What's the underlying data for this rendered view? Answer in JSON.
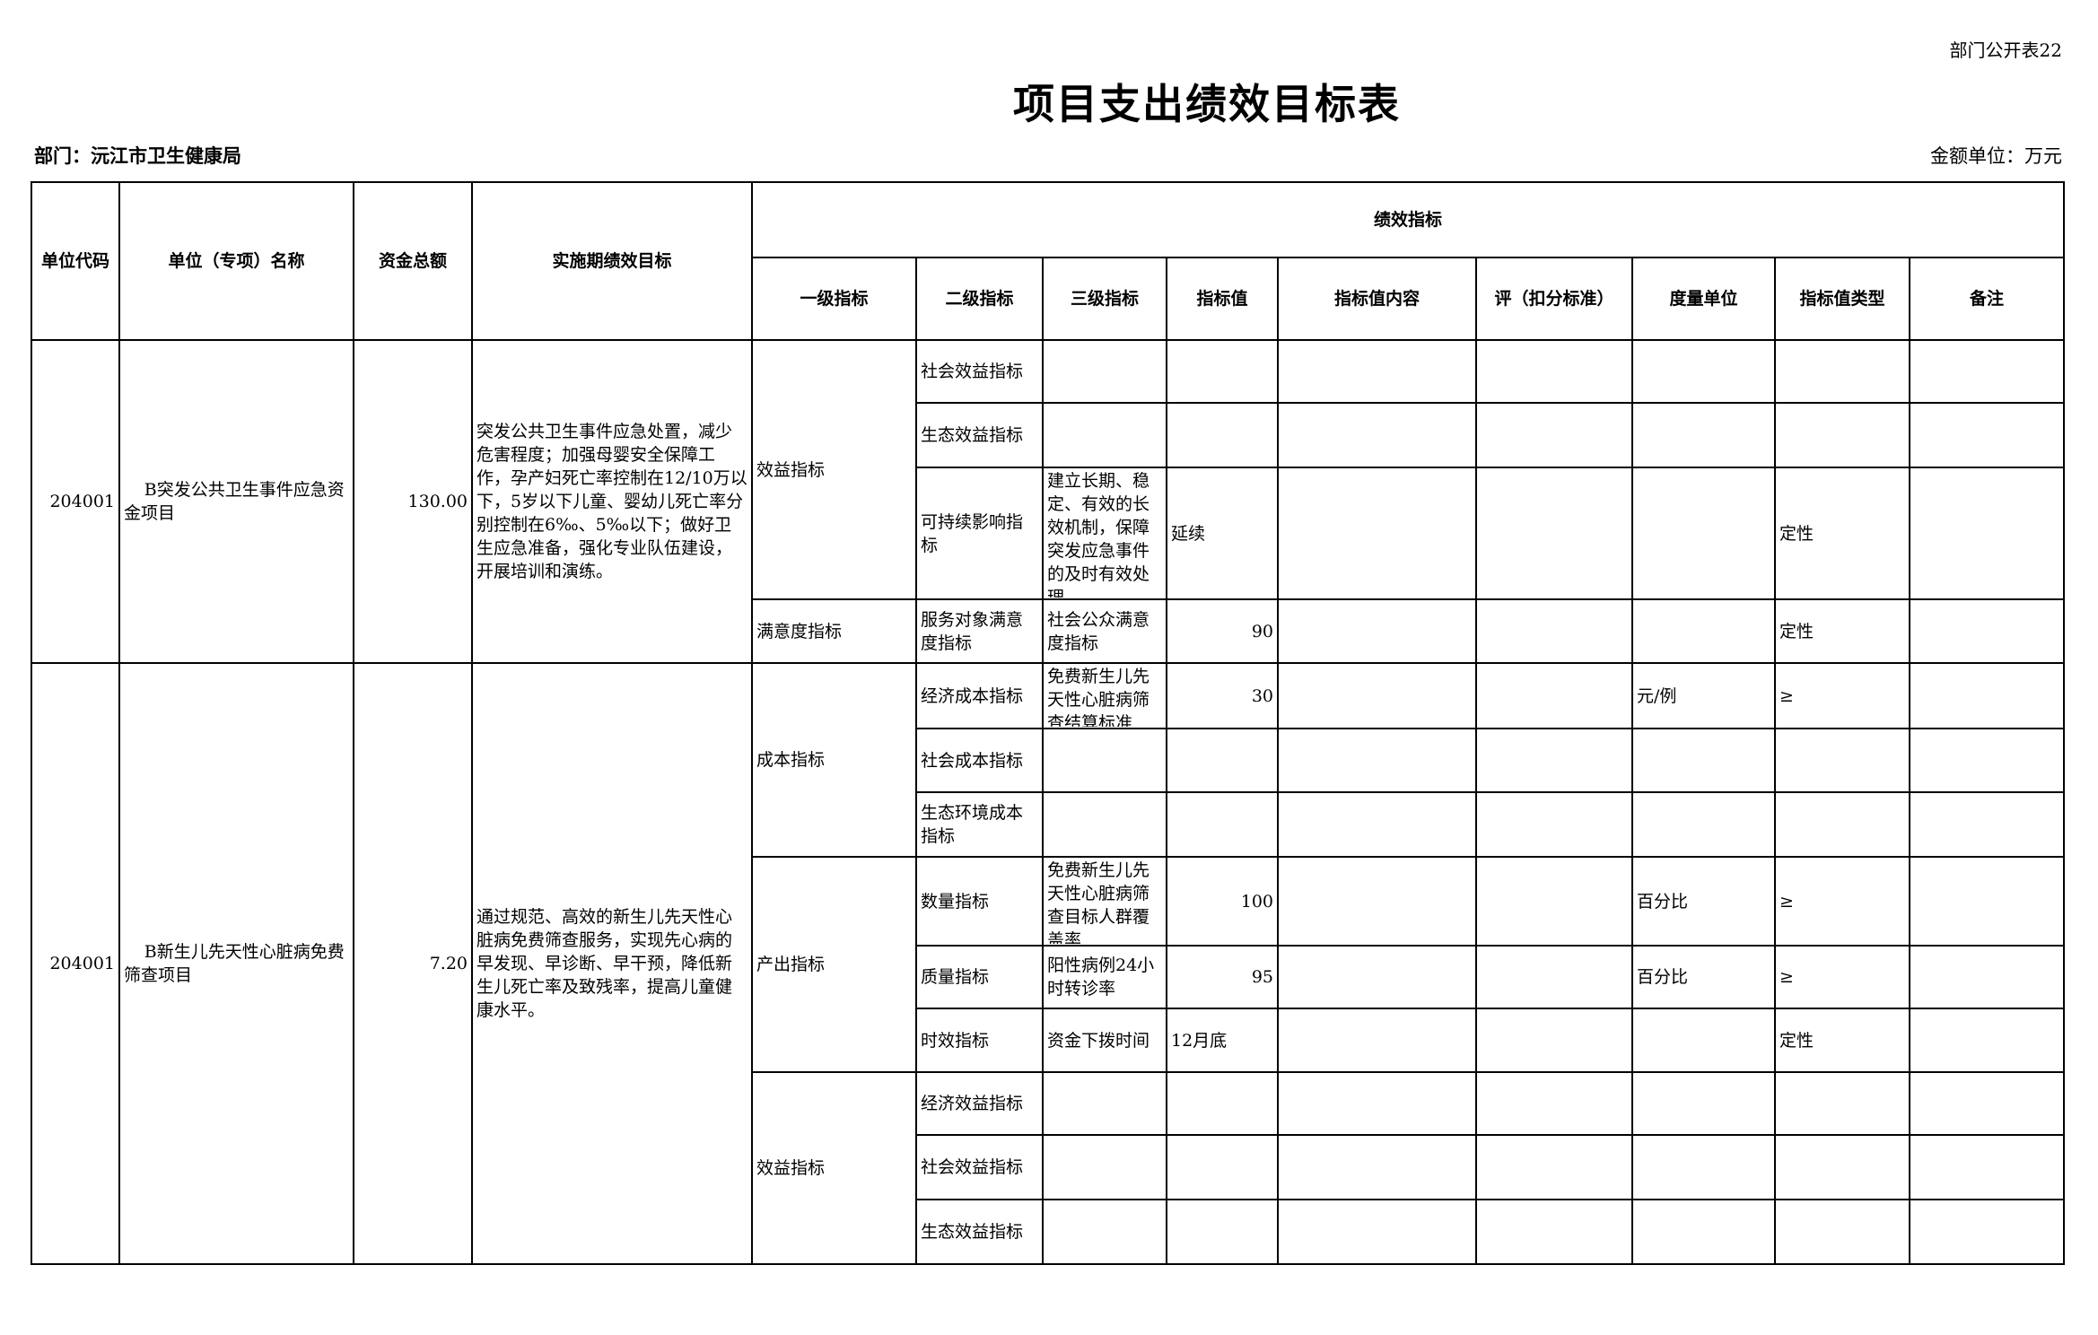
{
  "form_no": "部门公开表22",
  "title": "项目支出绩效目标表",
  "department": "部门：沅江市卫生健康局",
  "amount_unit": "金额单位：万元",
  "headers": {
    "code": "单位代码",
    "name": "单位（专项）名称",
    "amount": "资金总额",
    "goal": "实施期绩效目标",
    "performance": "绩效指标",
    "level1": "一级指标",
    "level2": "二级指标",
    "level3": "三级指标",
    "value": "指标值",
    "value_content": "指标值内容",
    "scoring": "评（扣分标准）",
    "measure_unit": "度量单位",
    "value_type": "指标值类型",
    "note": "备注"
  },
  "projects": [
    {
      "code": "204001",
      "name": "B突发公共卫生事件应急资金项目",
      "amount": "130.00",
      "goal": "突发公共卫生事件应急处置，减少危害程度；加强母婴安全保障工作，孕产妇死亡率控制在12/10万以下，5岁以下儿童、婴幼儿死亡率分别控制在6‰、5‰以下；做好卫生应急准备，强化专业队伍建设，开展培训和演练。",
      "groups": [
        {
          "level1": "效益指标",
          "items": [
            {
              "level2": "社会效益指标",
              "level3": "",
              "value": "",
              "unit": "",
              "value_type": ""
            },
            {
              "level2": "生态效益指标",
              "level3": "",
              "value": "",
              "unit": "",
              "value_type": ""
            },
            {
              "level2": "可持续影响指标",
              "level3": "建立长期、稳定、有效的长效机制，保障突发应急事件的及时有效处理",
              "value": "延续",
              "unit": "",
              "value_type": "定性"
            }
          ]
        },
        {
          "level1": "满意度指标",
          "items": [
            {
              "level2": "服务对象满意度指标",
              "level3": "社会公众满意度指标",
              "value": "90",
              "unit": "",
              "value_type": "定性"
            }
          ]
        }
      ]
    },
    {
      "code": "204001",
      "name": "B新生儿先天性心脏病免费筛查项目",
      "amount": "7.20",
      "goal": "通过规范、高效的新生儿先天性心脏病免费筛查服务，实现先心病的早发现、早诊断、早干预，降低新生儿死亡率及致残率，提高儿童健康水平。",
      "groups": [
        {
          "level1": "成本指标",
          "items": [
            {
              "level2": "经济成本指标",
              "level3": "免费新生儿先天性心脏病筛查结算标准",
              "value": "30",
              "unit": "元/例",
              "value_type": "≥"
            },
            {
              "level2": "社会成本指标",
              "level3": "",
              "value": "",
              "unit": "",
              "value_type": ""
            },
            {
              "level2": "生态环境成本指标",
              "level3": "",
              "value": "",
              "unit": "",
              "value_type": ""
            }
          ]
        },
        {
          "level1": "产出指标",
          "items": [
            {
              "level2": "数量指标",
              "level3": "免费新生儿先天性心脏病筛查目标人群覆盖率",
              "value": "100",
              "unit": "百分比",
              "value_type": "≥"
            },
            {
              "level2": "质量指标",
              "level3": "阳性病例24小时转诊率",
              "value": "95",
              "unit": "百分比",
              "value_type": "≥"
            },
            {
              "level2": "时效指标",
              "level3": "资金下拨时间",
              "value": "12月底",
              "unit": "",
              "value_type": "定性"
            }
          ]
        },
        {
          "level1": "效益指标",
          "items": [
            {
              "level2": "经济效益指标",
              "level3": "",
              "value": "",
              "unit": "",
              "value_type": ""
            },
            {
              "level2": "社会效益指标",
              "level3": "",
              "value": "",
              "unit": "",
              "value_type": ""
            },
            {
              "level2": "生态效益指标",
              "level3": "",
              "value": "",
              "unit": "",
              "value_type": ""
            }
          ]
        }
      ]
    }
  ]
}
